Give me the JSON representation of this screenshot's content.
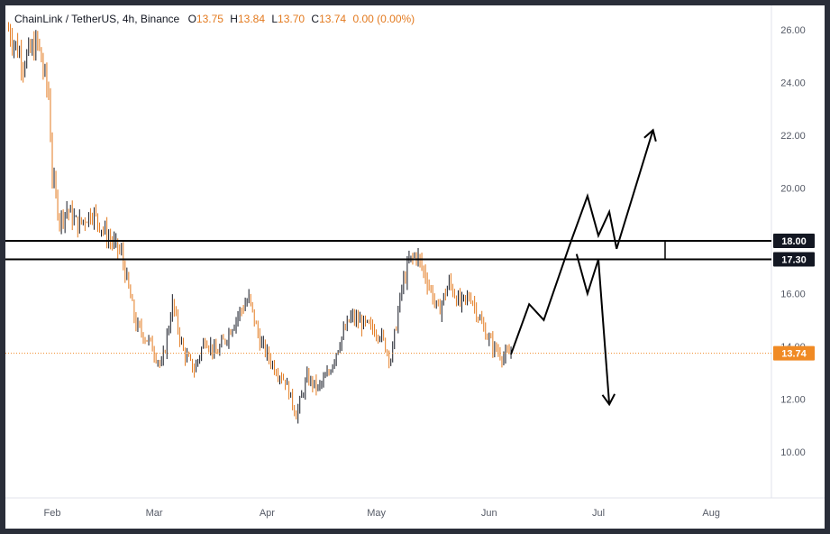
{
  "header": {
    "symbol": "ChainLink / TetherUS, 4h, Binance",
    "open_label": "O",
    "open_value": "13.75",
    "high_label": "H",
    "high_value": "13.84",
    "low_label": "L",
    "low_value": "13.70",
    "close_label": "C",
    "close_value": "13.74",
    "change_value": "0.00 (0.00%)"
  },
  "price_labels": {
    "level_high": "18.00",
    "level_low": "17.30",
    "last_price": "13.74"
  },
  "colors": {
    "candle_up": "#131722",
    "candle_down": "#e37a1f",
    "last_price_tag": "#f08a24",
    "level_tag": "#131722",
    "annotation": "#000000"
  },
  "chart_data": {
    "type": "line",
    "symbol": "ChainLink / TetherUS",
    "interval": "4h",
    "exchange": "Binance",
    "ohlc_last": {
      "open": 13.75,
      "high": 13.84,
      "low": 13.7,
      "close": 13.74,
      "change": 0.0,
      "change_pct": 0.0
    },
    "x_tick_labels": [
      "Feb",
      "Mar",
      "Apr",
      "May",
      "Jun",
      "Jul",
      "Aug"
    ],
    "y_tick_labels": [
      "10.00",
      "12.00",
      "14.00",
      "16.00",
      "18.00",
      "20.00",
      "22.00",
      "24.00",
      "26.00"
    ],
    "ylim": [
      8.6,
      26.8
    ],
    "grid": false,
    "price_series": {
      "name": "",
      "x": [
        "Jan 20",
        "Jan 24",
        "Jan 28",
        "Jan 31",
        "Feb 1",
        "Feb 3",
        "Feb 5",
        "Feb 8",
        "Feb 12",
        "Feb 16",
        "Feb 20",
        "Feb 24",
        "Feb 28",
        "Mar 3",
        "Mar 6",
        "Mar 9",
        "Mar 12",
        "Mar 15",
        "Mar 18",
        "Mar 21",
        "Mar 24",
        "Mar 27",
        "Mar 30",
        "Apr 3",
        "Apr 6",
        "Apr 9",
        "Apr 12",
        "Apr 15",
        "Apr 18",
        "Apr 21",
        "Apr 24",
        "Apr 28",
        "May 2",
        "May 5",
        "May 8",
        "May 10",
        "May 12",
        "May 15",
        "May 18",
        "May 21",
        "May 24",
        "May 27",
        "May 30",
        "Jun 2",
        "Jun 5",
        "Jun 7"
      ],
      "y": [
        26.0,
        24.8,
        25.5,
        23.5,
        20.5,
        18.8,
        19.2,
        18.6,
        19.1,
        18.2,
        17.5,
        14.8,
        14.1,
        13.2,
        15.6,
        13.8,
        13.1,
        14.3,
        13.7,
        14.4,
        15.2,
        15.8,
        14.2,
        13.2,
        12.7,
        11.4,
        12.8,
        12.4,
        13.0,
        14.2,
        15.1,
        14.8,
        14.5,
        13.5,
        16.2,
        17.2,
        17.5,
        16.5,
        15.3,
        16.4,
        15.6,
        15.9,
        14.8,
        14.0,
        13.6,
        13.74
      ]
    },
    "horizontal_levels": [
      18.0,
      17.3
    ],
    "last_price": 13.74,
    "projection_path": [
      {
        "x": "Jun 7",
        "y": 13.7
      },
      {
        "x": "Jun 12",
        "y": 15.6
      },
      {
        "x": "Jun 16",
        "y": 15.0
      },
      {
        "x": "Jun 23",
        "y": 17.8
      },
      {
        "x": "Jun 28",
        "y": 19.7
      },
      {
        "x": "Jul 1",
        "y": 18.2
      },
      {
        "x": "Jul 4",
        "y": 19.1
      },
      {
        "x": "Jul 6",
        "y": 17.7
      },
      {
        "x": "Jul 16",
        "y": 22.2
      }
    ],
    "projection_alt_path": [
      {
        "x": "Jun 25",
        "y": 17.5
      },
      {
        "x": "Jun 28",
        "y": 16.0
      },
      {
        "x": "Jul 1",
        "y": 17.3
      },
      {
        "x": "Jul 4",
        "y": 11.8
      }
    ]
  }
}
